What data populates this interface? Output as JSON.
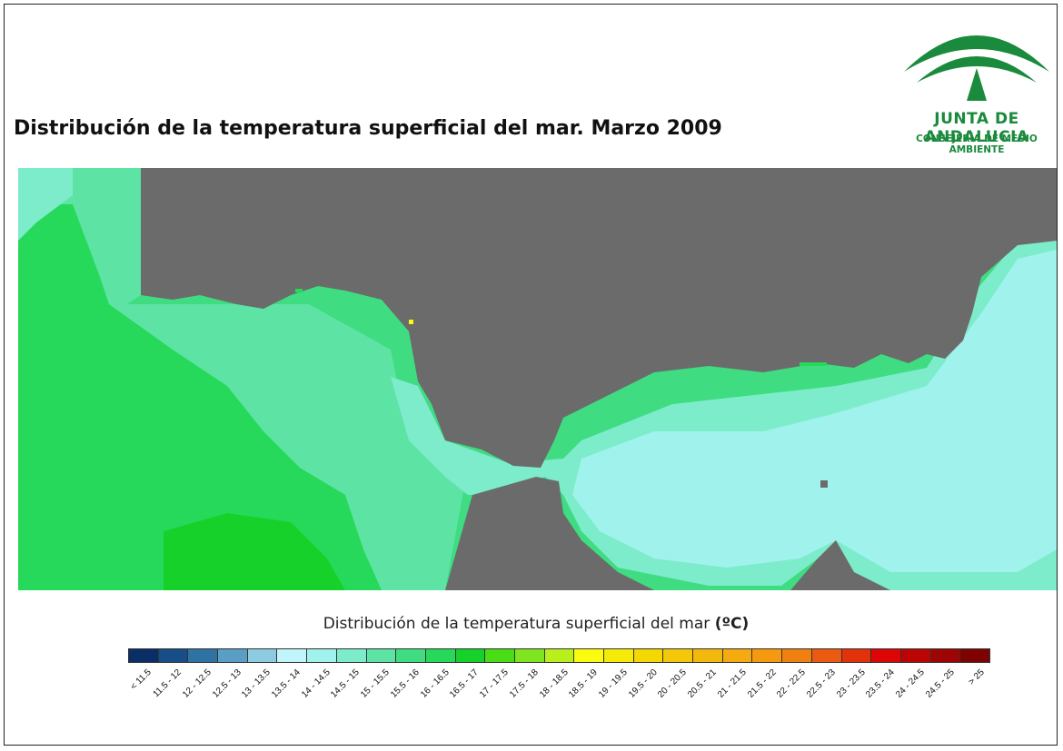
{
  "title": "Distribución de la temperatura superficial del mar. Marzo 2009",
  "logo": {
    "name": "JUNTA DE ANDALUCIA",
    "subtitle": "CONSEJERÍA DE MEDIO AMBIENTE",
    "color": "#1a8a3c"
  },
  "legend": {
    "title": "Distribución de la temperatura superficial del mar",
    "unit": "(ºC)",
    "classes": [
      {
        "label": "< 11.5",
        "color": "#0b2e66"
      },
      {
        "label": "11.5 - 12",
        "color": "#184e88"
      },
      {
        "label": "12 - 12.5",
        "color": "#2f73a3"
      },
      {
        "label": "12.5 - 13",
        "color": "#5a9ec6"
      },
      {
        "label": "13 - 13.5",
        "color": "#8ccbe0"
      },
      {
        "label": "13.5 - 14",
        "color": "#bff5fb"
      },
      {
        "label": "14 - 14.5",
        "color": "#a0f3ec"
      },
      {
        "label": "14.5 - 15",
        "color": "#7deccb"
      },
      {
        "label": "15 - 15.5",
        "color": "#5de4a4"
      },
      {
        "label": "15.5 - 16",
        "color": "#3fdc82"
      },
      {
        "label": "16 - 16.5",
        "color": "#27d95a"
      },
      {
        "label": "16.5 - 17",
        "color": "#16d12a"
      },
      {
        "label": "17 - 17.5",
        "color": "#48dd14"
      },
      {
        "label": "17.5 - 18",
        "color": "#7fe520"
      },
      {
        "label": "18 - 18.5",
        "color": "#b9f01c"
      },
      {
        "label": "18.5 - 19",
        "color": "#fbfb10"
      },
      {
        "label": "19 - 19.5",
        "color": "#f5ea08"
      },
      {
        "label": "19.5 - 20",
        "color": "#f3d804"
      },
      {
        "label": "20 - 20.5",
        "color": "#f4c808"
      },
      {
        "label": "20.5 - 21",
        "color": "#f3b80c"
      },
      {
        "label": "21 - 21.5",
        "color": "#f5aa10"
      },
      {
        "label": "21.5 - 22",
        "color": "#f59a10"
      },
      {
        "label": "22 - 22.5",
        "color": "#f08010"
      },
      {
        "label": "22.5 - 23",
        "color": "#ea5a10"
      },
      {
        "label": "23 - 23.5",
        "color": "#e2320c"
      },
      {
        "label": "23.5 - 24",
        "color": "#dc0606"
      },
      {
        "label": "24 - 24.5",
        "color": "#bb0404"
      },
      {
        "label": "24.5 - 25",
        "color": "#9e0404"
      },
      {
        "label": "> 25",
        "color": "#7e0202"
      }
    ]
  },
  "map": {
    "land_color": "#6b6b6b",
    "sea_colors": {
      "warm": "#27d95a",
      "mid": "#3fdc82",
      "cool": "#5de4a4",
      "cooler": "#7deccb",
      "coolest": "#a0f3ec",
      "hotspot": "#fbfb10",
      "peak": "#16d12a"
    }
  }
}
